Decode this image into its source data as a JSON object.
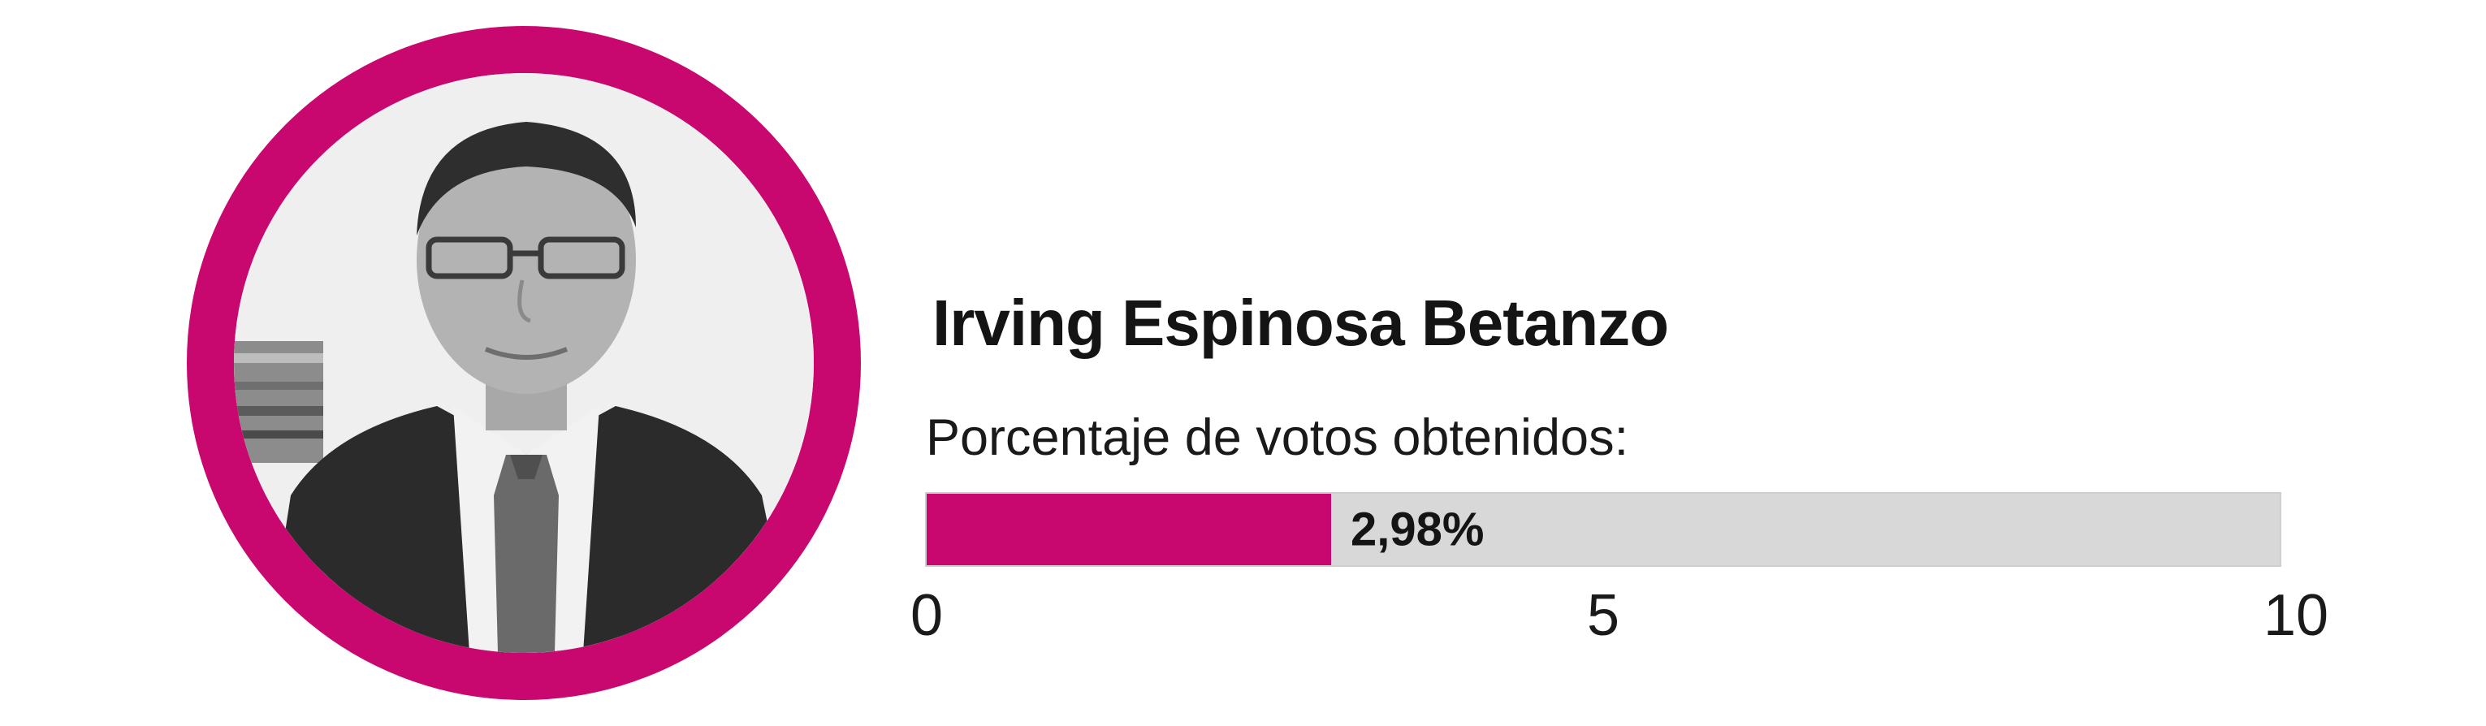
{
  "candidate": {
    "name": "Irving Espinosa Betanzo",
    "subtitle": "Porcentaje de votos obtenidos:"
  },
  "colors": {
    "accent": "#c8086f",
    "track": "#d8d8d8"
  },
  "chart_data": {
    "type": "bar",
    "orientation": "horizontal",
    "title": "",
    "categories": [
      "Irving Espinosa Betanzo"
    ],
    "values": [
      2.98
    ],
    "value_label": "2,98%",
    "xlim": [
      0,
      10
    ],
    "ticks": [
      {
        "value": 0,
        "label": "0"
      },
      {
        "value": 5,
        "label": "5"
      },
      {
        "value": 10,
        "label": "10"
      }
    ],
    "grid": false,
    "legend": "none"
  }
}
